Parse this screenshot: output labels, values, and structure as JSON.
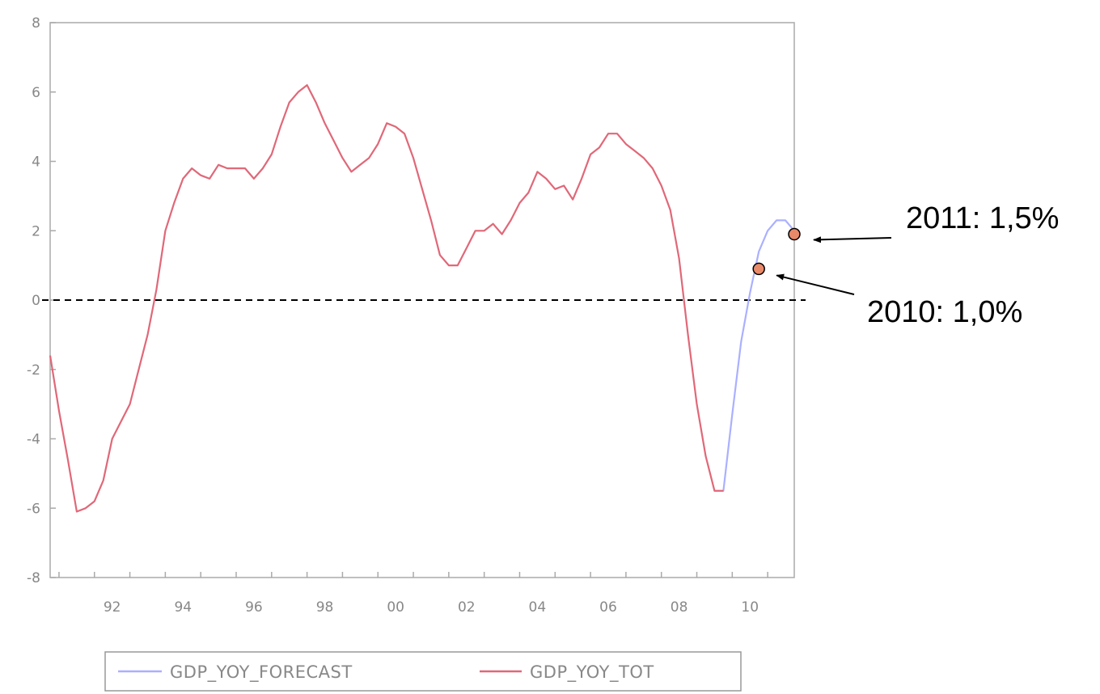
{
  "chart_data": {
    "type": "line",
    "title": "",
    "xlabel": "",
    "ylabel": "",
    "xlim": [
      1990.75,
      2011.75
    ],
    "ylim": [
      -8,
      8
    ],
    "y_ticks": [
      "8",
      "6",
      "4",
      "2",
      "0",
      "-2",
      "-4",
      "-6",
      "-8"
    ],
    "x_ticks": [
      "92",
      "94",
      "96",
      "98",
      "00",
      "02",
      "04",
      "06",
      "08",
      "10"
    ],
    "grid": false,
    "zero_line": {
      "value": 0,
      "style": "dashed"
    },
    "legend_position": "bottom",
    "series": [
      {
        "name": "GDP_YOY_FORECAST",
        "color": "#aab0ff",
        "x": [
          2009.5,
          2009.75,
          2010.0,
          2010.25,
          2010.5,
          2010.75,
          2011.0,
          2011.25,
          2011.5,
          2011.75
        ],
        "values": [
          -5.5,
          -5.5,
          -3.3,
          -1.2,
          0.2,
          1.4,
          2.0,
          2.3,
          2.3,
          2.0
        ]
      },
      {
        "name": "GDP_YOY_TOT",
        "color": "#e06878",
        "x": [
          1990.75,
          1991.0,
          1991.25,
          1991.5,
          1991.75,
          1992.0,
          1992.25,
          1992.5,
          1992.75,
          1993.0,
          1993.25,
          1993.5,
          1993.75,
          1994.0,
          1994.25,
          1994.5,
          1994.75,
          1995.0,
          1995.25,
          1995.5,
          1995.75,
          1996.0,
          1996.25,
          1996.5,
          1996.75,
          1997.0,
          1997.25,
          1997.5,
          1997.75,
          1998.0,
          1998.25,
          1998.5,
          1998.75,
          1999.0,
          1999.25,
          1999.5,
          1999.75,
          2000.0,
          2000.25,
          2000.5,
          2000.75,
          2001.0,
          2001.25,
          2001.5,
          2001.75,
          2002.0,
          2002.25,
          2002.5,
          2002.75,
          2003.0,
          2003.25,
          2003.5,
          2003.75,
          2004.0,
          2004.25,
          2004.5,
          2004.75,
          2005.0,
          2005.25,
          2005.5,
          2005.75,
          2006.0,
          2006.25,
          2006.5,
          2006.75,
          2007.0,
          2007.25,
          2007.5,
          2007.75,
          2008.0,
          2008.25,
          2008.5,
          2008.75,
          2009.0,
          2009.25,
          2009.5,
          2009.75
        ],
        "values": [
          -1.6,
          -3.2,
          -4.6,
          -6.1,
          -6.0,
          -5.8,
          -5.2,
          -4.0,
          -3.5,
          -3.0,
          -2.0,
          -1.0,
          0.3,
          2.0,
          2.8,
          3.5,
          3.8,
          3.6,
          3.5,
          3.9,
          3.8,
          3.8,
          3.8,
          3.5,
          3.8,
          4.2,
          5.0,
          5.7,
          6.0,
          6.2,
          5.7,
          5.1,
          4.6,
          4.1,
          3.7,
          3.9,
          4.1,
          4.5,
          5.1,
          5.0,
          4.8,
          4.1,
          3.2,
          2.3,
          1.3,
          1.0,
          1.0,
          1.5,
          2.0,
          2.0,
          2.2,
          1.9,
          2.3,
          2.8,
          3.1,
          3.7,
          3.5,
          3.2,
          3.3,
          2.9,
          3.5,
          4.2,
          4.4,
          4.8,
          4.8,
          4.5,
          4.3,
          4.1,
          3.8,
          3.3,
          2.6,
          1.2,
          -1.0,
          -3.0,
          -4.5,
          -5.5,
          -5.5
        ]
      }
    ],
    "annotations": [
      {
        "label": "2011: 1,5%",
        "x": 2011.75,
        "y": 1.9,
        "marker_color": "#e8896a"
      },
      {
        "label": "2010: 1,0%",
        "x": 2010.75,
        "y": 0.9,
        "marker_color": "#e8896a"
      }
    ]
  }
}
